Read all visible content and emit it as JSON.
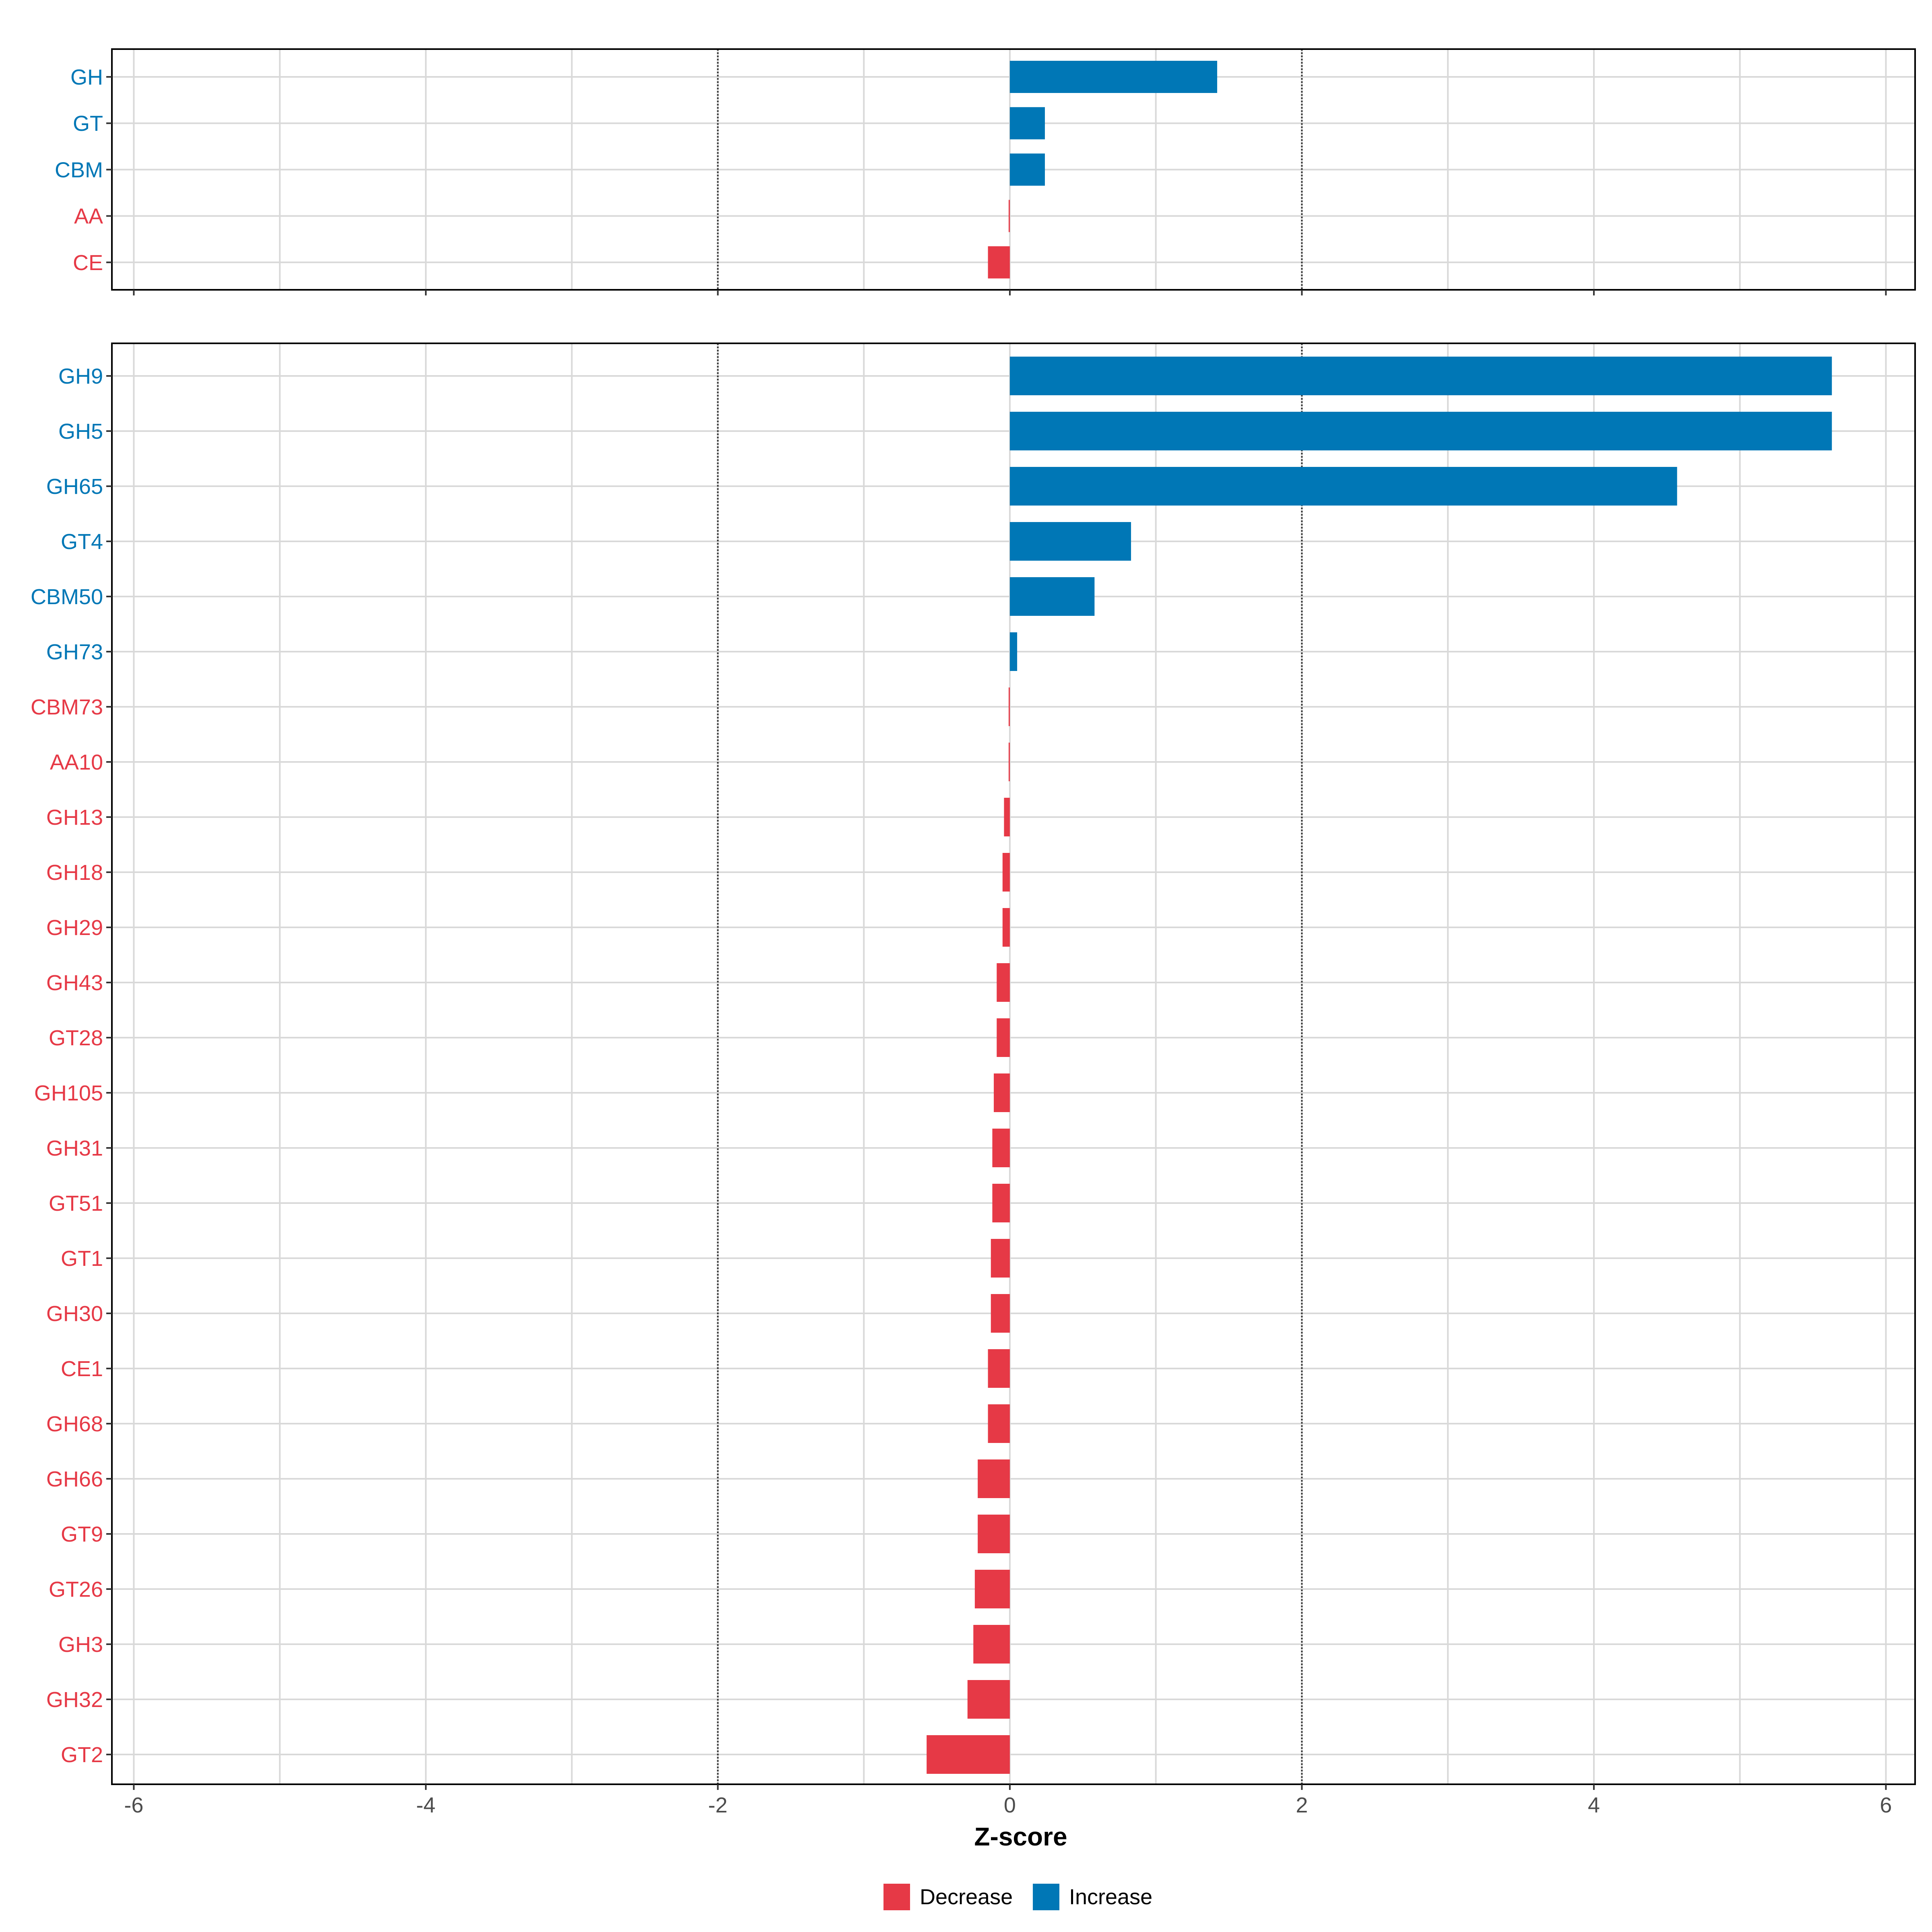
{
  "chart_data": [
    {
      "type": "bar",
      "orientation": "horizontal",
      "panel": "class-level",
      "categories": [
        "GH",
        "GT",
        "CBM",
        "AA",
        "CE"
      ],
      "values": [
        1.42,
        0.24,
        0.24,
        -0.005,
        -0.15
      ],
      "xlim": [
        -6.15,
        6.2
      ],
      "x_ticks": [
        -6,
        -4,
        -2,
        0,
        2,
        4,
        6
      ],
      "reference_lines": [
        -2,
        2
      ],
      "grid": true,
      "show_x_tick_labels": false
    },
    {
      "type": "bar",
      "orientation": "horizontal",
      "panel": "family-level",
      "categories": [
        "GH9",
        "GH5",
        "GH65",
        "GT4",
        "CBM50",
        "GH73",
        "CBM73",
        "AA10",
        "GH13",
        "GH18",
        "GH29",
        "GH43",
        "GT28",
        "GH105",
        "GH31",
        "GT51",
        "GT1",
        "GH30",
        "CE1",
        "GH68",
        "GH66",
        "GT9",
        "GT26",
        "GH3",
        "GH32",
        "GT2"
      ],
      "values": [
        5.63,
        5.63,
        4.57,
        0.83,
        0.58,
        0.05,
        -0.005,
        -0.005,
        -0.04,
        -0.05,
        -0.05,
        -0.09,
        -0.09,
        -0.11,
        -0.12,
        -0.12,
        -0.13,
        -0.13,
        -0.15,
        -0.15,
        -0.22,
        -0.22,
        -0.24,
        -0.25,
        -0.29,
        -0.57
      ],
      "xlim": [
        -6.15,
        6.2
      ],
      "x_ticks": [
        -6,
        -4,
        -2,
        0,
        2,
        4,
        6
      ],
      "tick_labels": [
        "-6",
        "-4",
        "-2",
        "0",
        "2",
        "4",
        "6"
      ],
      "reference_lines": [
        -2,
        2
      ],
      "grid": true,
      "show_x_tick_labels": true,
      "xlabel": "Z-score"
    }
  ],
  "legend": {
    "placement": "bottom",
    "items": [
      {
        "label": "Decrease",
        "color": "#e63946"
      },
      {
        "label": "Increase",
        "color": "#0077b6"
      }
    ]
  },
  "colors": {
    "decrease": "#e63946",
    "increase": "#0077b6",
    "grid": "#d9d9d9",
    "reference_line": "#333333",
    "axis_text": "#4d4d4d"
  }
}
